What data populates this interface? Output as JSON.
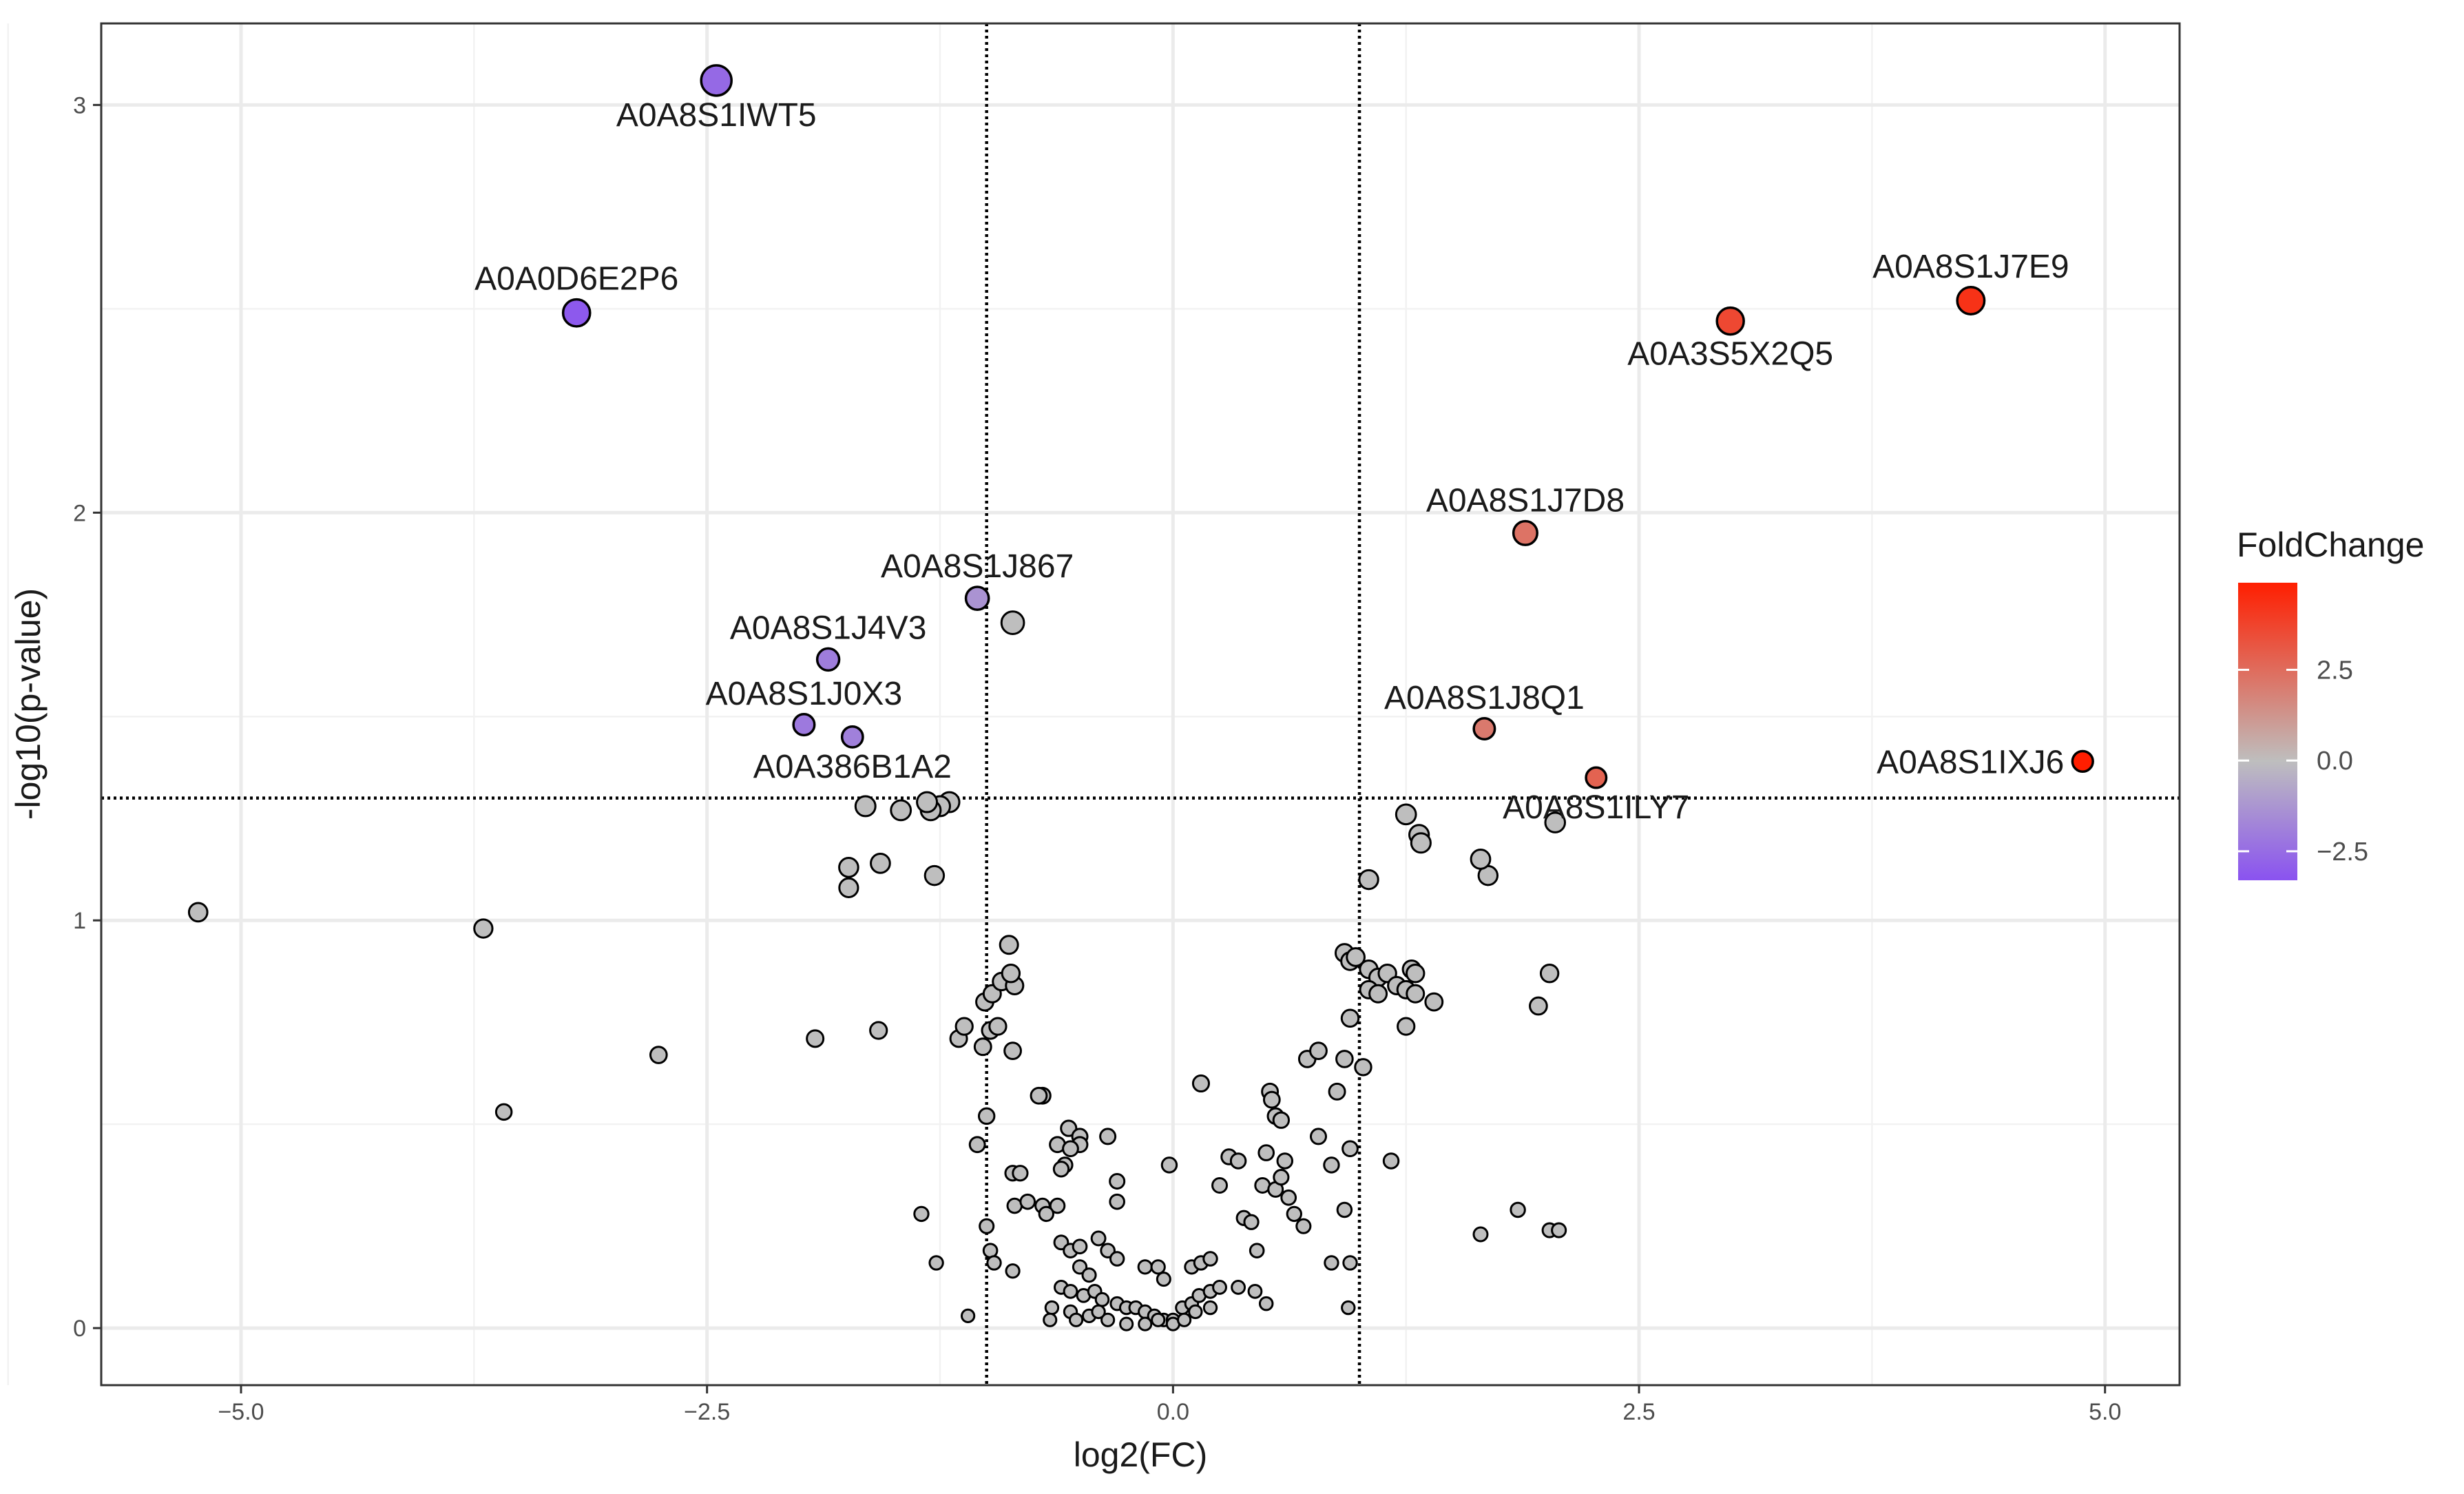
{
  "chart_data": {
    "type": "scatter",
    "title": "",
    "xlabel": "log2(FC)",
    "ylabel": "-log10(p-value)",
    "xlim": [
      -5.75,
      5.4
    ],
    "ylim": [
      -0.14,
      3.2
    ],
    "xticks": [
      -5.0,
      -2.5,
      0.0,
      2.5,
      5.0
    ],
    "xtick_labels": [
      "−5.0",
      "−2.5",
      "0.0",
      "2.5",
      "5.0"
    ],
    "yticks": [
      0,
      1,
      2,
      3
    ],
    "ytick_labels": [
      "0",
      "1",
      "2",
      "3"
    ],
    "grid": true,
    "thresholds": {
      "x": [
        -1,
        1
      ],
      "y": 1.3
    },
    "legend": {
      "title": "FoldChange",
      "position": "right",
      "range": [
        -3.3,
        4.9
      ],
      "ticks": [
        2.5,
        0.0,
        -2.5
      ],
      "tick_labels": [
        "2.5",
        "0.0",
        "−2.5"
      ],
      "colors": {
        "low": "#8a52f0",
        "mid": "#bebebe",
        "high": "#ff1e00"
      }
    },
    "colors": {
      "neutral": "#bebebe",
      "outline": "#000000",
      "grid": "#ebebeb",
      "threshold": "#000000"
    },
    "labeled_points": [
      {
        "id": "A0A8S1IWT5",
        "x": -2.45,
        "y": 3.06,
        "fc": -2.6,
        "label_pos": "below"
      },
      {
        "id": "A0A0D6E2P6",
        "x": -3.2,
        "y": 2.49,
        "fc": -3.1,
        "label_pos": "above"
      },
      {
        "id": "A0A8S1J867",
        "x": -1.05,
        "y": 1.79,
        "fc": -1.3,
        "label_pos": "above"
      },
      {
        "id": "A0A8S1J4V3",
        "x": -1.85,
        "y": 1.64,
        "fc": -2.0,
        "label_pos": "above"
      },
      {
        "id": "A0A8S1J0X3",
        "x": -1.98,
        "y": 1.48,
        "fc": -2.1,
        "label_pos": "above"
      },
      {
        "id": "A0A386B1A2",
        "x": -1.72,
        "y": 1.45,
        "fc": -1.9,
        "label_pos": "below"
      },
      {
        "id": "A0A8S1J7E9",
        "x": 4.28,
        "y": 2.52,
        "fc": 4.3,
        "label_pos": "above"
      },
      {
        "id": "A0A3S5X2Q5",
        "x": 2.99,
        "y": 2.47,
        "fc": 3.6,
        "label_pos": "below"
      },
      {
        "id": "A0A8S1J7D8",
        "x": 1.89,
        "y": 1.95,
        "fc": 2.3,
        "label_pos": "above"
      },
      {
        "id": "A0A8S1J8Q1",
        "x": 1.67,
        "y": 1.47,
        "fc": 2.1,
        "label_pos": "above"
      },
      {
        "id": "A0A8S1ILY7",
        "x": 2.27,
        "y": 1.35,
        "fc": 2.8,
        "label_pos": "below"
      },
      {
        "id": "A0A8S1IXJ6",
        "x": 4.88,
        "y": 1.39,
        "fc": 4.9,
        "label_pos": "left"
      }
    ],
    "other_points": [
      [
        -5.23,
        1.02
      ],
      [
        -3.7,
        0.98
      ],
      [
        -3.59,
        0.53
      ],
      [
        -2.76,
        0.67
      ],
      [
        -1.92,
        0.71
      ],
      [
        -1.58,
        0.73
      ],
      [
        -1.35,
        0.28
      ],
      [
        -1.27,
        0.16
      ],
      [
        -1.1,
        0.03
      ],
      [
        -1.0,
        0.25
      ],
      [
        -0.98,
        0.19
      ],
      [
        -0.96,
        0.16
      ],
      [
        -0.86,
        0.14
      ],
      [
        -1.05,
        0.45
      ],
      [
        -1.0,
        0.52
      ],
      [
        -0.86,
        0.68
      ],
      [
        -1.15,
        0.71
      ],
      [
        -1.12,
        0.74
      ],
      [
        -1.02,
        0.69
      ],
      [
        -0.98,
        0.73
      ],
      [
        -0.94,
        0.74
      ],
      [
        -1.01,
        0.8
      ],
      [
        -0.97,
        0.82
      ],
      [
        -0.92,
        0.85
      ],
      [
        -0.85,
        0.84
      ],
      [
        -0.87,
        0.87
      ],
      [
        -0.88,
        0.94
      ],
      [
        -1.2,
        1.29
      ],
      [
        -1.25,
        1.28
      ],
      [
        -1.3,
        1.27
      ],
      [
        -1.32,
        1.29
      ],
      [
        -1.46,
        1.27
      ],
      [
        -1.65,
        1.28
      ],
      [
        -1.57,
        1.14
      ],
      [
        -1.74,
        1.13
      ],
      [
        -1.74,
        1.08
      ],
      [
        -1.28,
        1.11
      ],
      [
        -0.86,
        1.73
      ],
      [
        -0.7,
        0.57
      ],
      [
        -0.72,
        0.57
      ],
      [
        -0.62,
        0.45
      ],
      [
        -0.56,
        0.49
      ],
      [
        -0.5,
        0.47
      ],
      [
        -0.5,
        0.45
      ],
      [
        -0.55,
        0.44
      ],
      [
        -0.58,
        0.4
      ],
      [
        -0.6,
        0.39
      ],
      [
        -0.62,
        0.3
      ],
      [
        -0.7,
        0.3
      ],
      [
        -0.85,
        0.3
      ],
      [
        -0.86,
        0.38
      ],
      [
        -0.82,
        0.38
      ],
      [
        -0.78,
        0.31
      ],
      [
        -0.35,
        0.47
      ],
      [
        -0.3,
        0.36
      ],
      [
        -0.3,
        0.31
      ],
      [
        -0.68,
        0.28
      ],
      [
        -0.6,
        0.21
      ],
      [
        -0.55,
        0.19
      ],
      [
        -0.5,
        0.2
      ],
      [
        -0.4,
        0.22
      ],
      [
        -0.35,
        0.19
      ],
      [
        -0.5,
        0.15
      ],
      [
        -0.45,
        0.13
      ],
      [
        -0.3,
        0.17
      ],
      [
        -0.15,
        0.15
      ],
      [
        -0.08,
        0.15
      ],
      [
        -0.05,
        0.12
      ],
      [
        0.1,
        0.15
      ],
      [
        0.15,
        0.16
      ],
      [
        0.2,
        0.17
      ],
      [
        -0.6,
        0.1
      ],
      [
        -0.55,
        0.09
      ],
      [
        -0.48,
        0.08
      ],
      [
        -0.42,
        0.09
      ],
      [
        -0.38,
        0.07
      ],
      [
        -0.3,
        0.06
      ],
      [
        -0.25,
        0.05
      ],
      [
        -0.2,
        0.05
      ],
      [
        -0.15,
        0.04
      ],
      [
        -0.1,
        0.03
      ],
      [
        -0.05,
        0.02
      ],
      [
        0.0,
        0.02
      ],
      [
        0.05,
        0.05
      ],
      [
        0.1,
        0.06
      ],
      [
        0.14,
        0.08
      ],
      [
        0.2,
        0.09
      ],
      [
        -0.65,
        0.05
      ],
      [
        -0.55,
        0.04
      ],
      [
        -0.45,
        0.03
      ],
      [
        -0.35,
        0.02
      ],
      [
        -0.25,
        0.01
      ],
      [
        -0.15,
        0.01
      ],
      [
        -0.08,
        0.02
      ],
      [
        -0.66,
        0.02
      ],
      [
        -0.52,
        0.02
      ],
      [
        -0.4,
        0.04
      ],
      [
        0.0,
        0.01
      ],
      [
        0.06,
        0.02
      ],
      [
        0.12,
        0.04
      ],
      [
        -0.02,
        0.4
      ],
      [
        0.15,
        0.6
      ],
      [
        0.25,
        0.35
      ],
      [
        0.3,
        0.42
      ],
      [
        0.35,
        0.41
      ],
      [
        0.38,
        0.27
      ],
      [
        0.42,
        0.26
      ],
      [
        0.48,
        0.35
      ],
      [
        0.5,
        0.43
      ],
      [
        0.55,
        0.34
      ],
      [
        0.58,
        0.37
      ],
      [
        0.6,
        0.41
      ],
      [
        0.62,
        0.32
      ],
      [
        0.65,
        0.28
      ],
      [
        0.7,
        0.25
      ],
      [
        0.52,
        0.58
      ],
      [
        0.53,
        0.56
      ],
      [
        0.55,
        0.52
      ],
      [
        0.58,
        0.51
      ],
      [
        0.72,
        0.66
      ],
      [
        0.78,
        0.68
      ],
      [
        0.88,
        0.58
      ],
      [
        0.92,
        0.66
      ],
      [
        0.95,
        0.44
      ],
      [
        0.85,
        0.4
      ],
      [
        0.78,
        0.47
      ],
      [
        0.92,
        0.29
      ],
      [
        0.95,
        0.16
      ],
      [
        0.85,
        0.16
      ],
      [
        0.94,
        0.05
      ],
      [
        0.45,
        0.19
      ],
      [
        0.44,
        0.09
      ],
      [
        0.5,
        0.06
      ],
      [
        0.35,
        0.1
      ],
      [
        0.25,
        0.1
      ],
      [
        0.2,
        0.05
      ],
      [
        0.92,
        0.92
      ],
      [
        0.95,
        0.9
      ],
      [
        0.98,
        0.91
      ],
      [
        1.05,
        0.88
      ],
      [
        1.1,
        0.86
      ],
      [
        1.15,
        0.87
      ],
      [
        1.2,
        0.84
      ],
      [
        1.28,
        0.88
      ],
      [
        1.3,
        0.87
      ],
      [
        1.25,
        0.83
      ],
      [
        1.05,
        0.83
      ],
      [
        1.1,
        0.82
      ],
      [
        1.3,
        0.82
      ],
      [
        1.4,
        0.8
      ],
      [
        0.95,
        0.76
      ],
      [
        1.02,
        0.64
      ],
      [
        1.25,
        0.74
      ],
      [
        1.17,
        0.41
      ],
      [
        1.05,
        1.1
      ],
      [
        1.25,
        1.26
      ],
      [
        1.32,
        1.21
      ],
      [
        1.33,
        1.19
      ],
      [
        1.69,
        1.11
      ],
      [
        1.65,
        1.15
      ],
      [
        2.05,
        1.24
      ],
      [
        2.02,
        0.87
      ],
      [
        1.96,
        0.79
      ],
      [
        1.65,
        0.23
      ],
      [
        1.85,
        0.29
      ],
      [
        2.02,
        0.24
      ],
      [
        2.07,
        0.24
      ]
    ]
  }
}
